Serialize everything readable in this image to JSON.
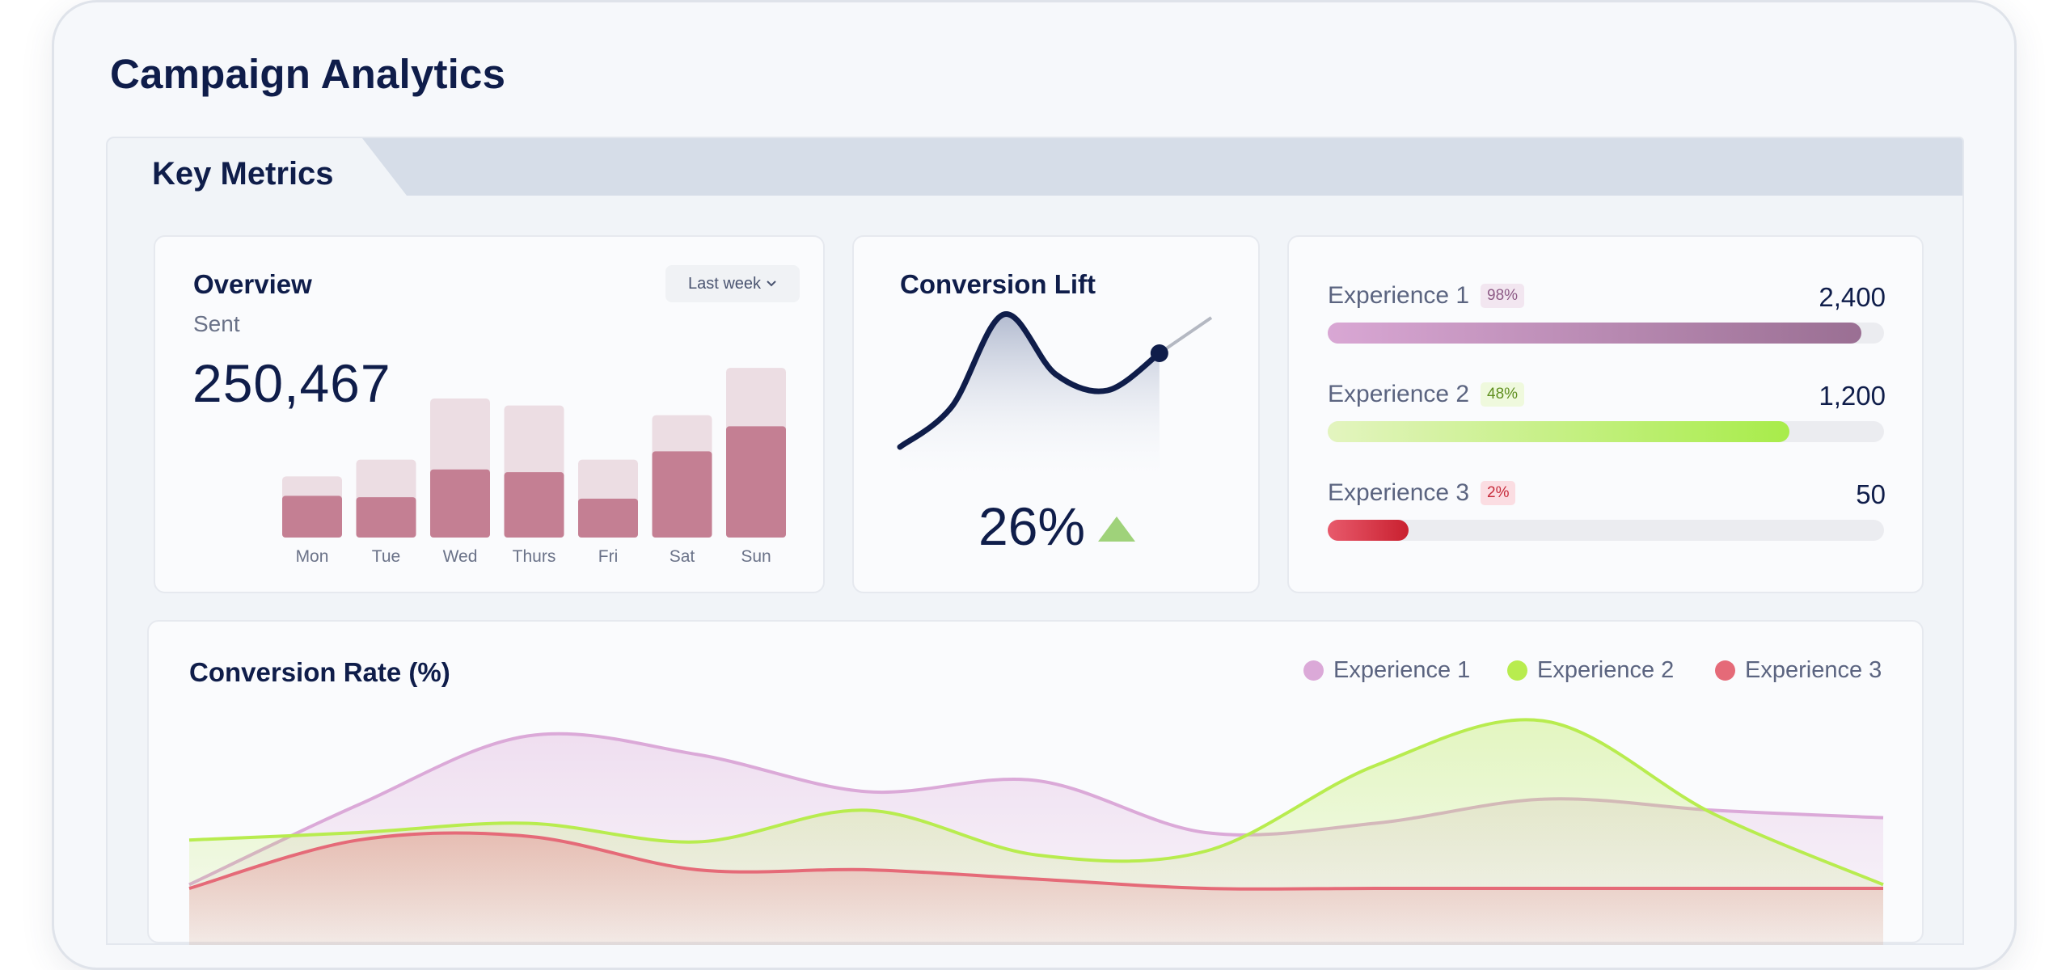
{
  "app": {
    "title": "Campaign Analytics"
  },
  "section": {
    "title": "Key Metrics"
  },
  "overview": {
    "title": "Overview",
    "dropdown": "Last week",
    "metric_label": "Sent",
    "metric_value": "250,467",
    "bar_colors": {
      "light": "#ecdde3",
      "dark": "#c47f93"
    }
  },
  "lift": {
    "title": "Conversion Lift",
    "value": "26%",
    "trend": "up",
    "colors": {
      "line": "#0f1d4a",
      "arrow": "#9fd27a"
    }
  },
  "experiences": [
    {
      "label": "Experience 1",
      "badge": "98%",
      "value": "2,400",
      "progress": 0.96,
      "color_from": "#d9a7d4",
      "color_to": "#9a6f93",
      "badge_bg": "#f2e6f0",
      "badge_fg": "#8d5b86"
    },
    {
      "label": "Experience 2",
      "badge": "48%",
      "value": "1,200",
      "progress": 0.83,
      "color_from": "#e3f4bf",
      "color_to": "#a8ec4a",
      "badge_bg": "#eff9dd",
      "badge_fg": "#5f8f1f"
    },
    {
      "label": "Experience 3",
      "badge": "2%",
      "value": "50",
      "progress": 0.145,
      "color_from": "#e85a6c",
      "color_to": "#c9202f",
      "badge_bg": "#fbdde2",
      "badge_fg": "#c72b3b"
    }
  ],
  "rate": {
    "title": "Conversion Rate (%)",
    "legend": [
      {
        "label": "Experience 1",
        "color": "#dba9d8"
      },
      {
        "label": "Experience 2",
        "color": "#b8ec4f"
      },
      {
        "label": "Experience 3",
        "color": "#e56a78"
      }
    ]
  },
  "chart_data": [
    {
      "type": "bar",
      "categories": [
        "Mon",
        "Tue",
        "Wed",
        "Thurs",
        "Fri",
        "Sat",
        "Sun"
      ],
      "series": [
        {
          "values": [
            0.44,
            0.56,
            1.0,
            0.95,
            0.56,
            0.88,
            1.22
          ]
        },
        {
          "values": [
            0.3,
            0.29,
            0.49,
            0.47,
            0.28,
            0.62,
            0.8
          ]
        }
      ]
    },
    {
      "type": "line",
      "x": [
        0,
        1,
        2,
        3,
        4,
        5,
        6
      ],
      "series": [
        {
          "values": [
            0.1,
            0.35,
            0.92,
            0.55,
            0.45,
            0.68,
            0.9
          ]
        }
      ]
    },
    {
      "type": "area",
      "x": [
        0,
        1,
        2,
        3,
        4,
        5,
        6,
        7,
        8,
        9,
        10
      ],
      "series": [
        {
          "name": "Experience 1",
          "values": [
            0.02,
            0.45,
            0.82,
            0.72,
            0.52,
            0.58,
            0.3,
            0.35,
            0.48,
            0.42,
            0.38
          ]
        },
        {
          "name": "Experience 2",
          "values": [
            0.26,
            0.3,
            0.35,
            0.25,
            0.42,
            0.18,
            0.2,
            0.66,
            0.9,
            0.4,
            0.02
          ]
        },
        {
          "name": "Experience 3",
          "values": [
            0.0,
            0.26,
            0.28,
            0.1,
            0.1,
            0.05,
            0.0,
            0.0,
            0.0,
            0.0,
            0.0
          ]
        }
      ]
    }
  ]
}
